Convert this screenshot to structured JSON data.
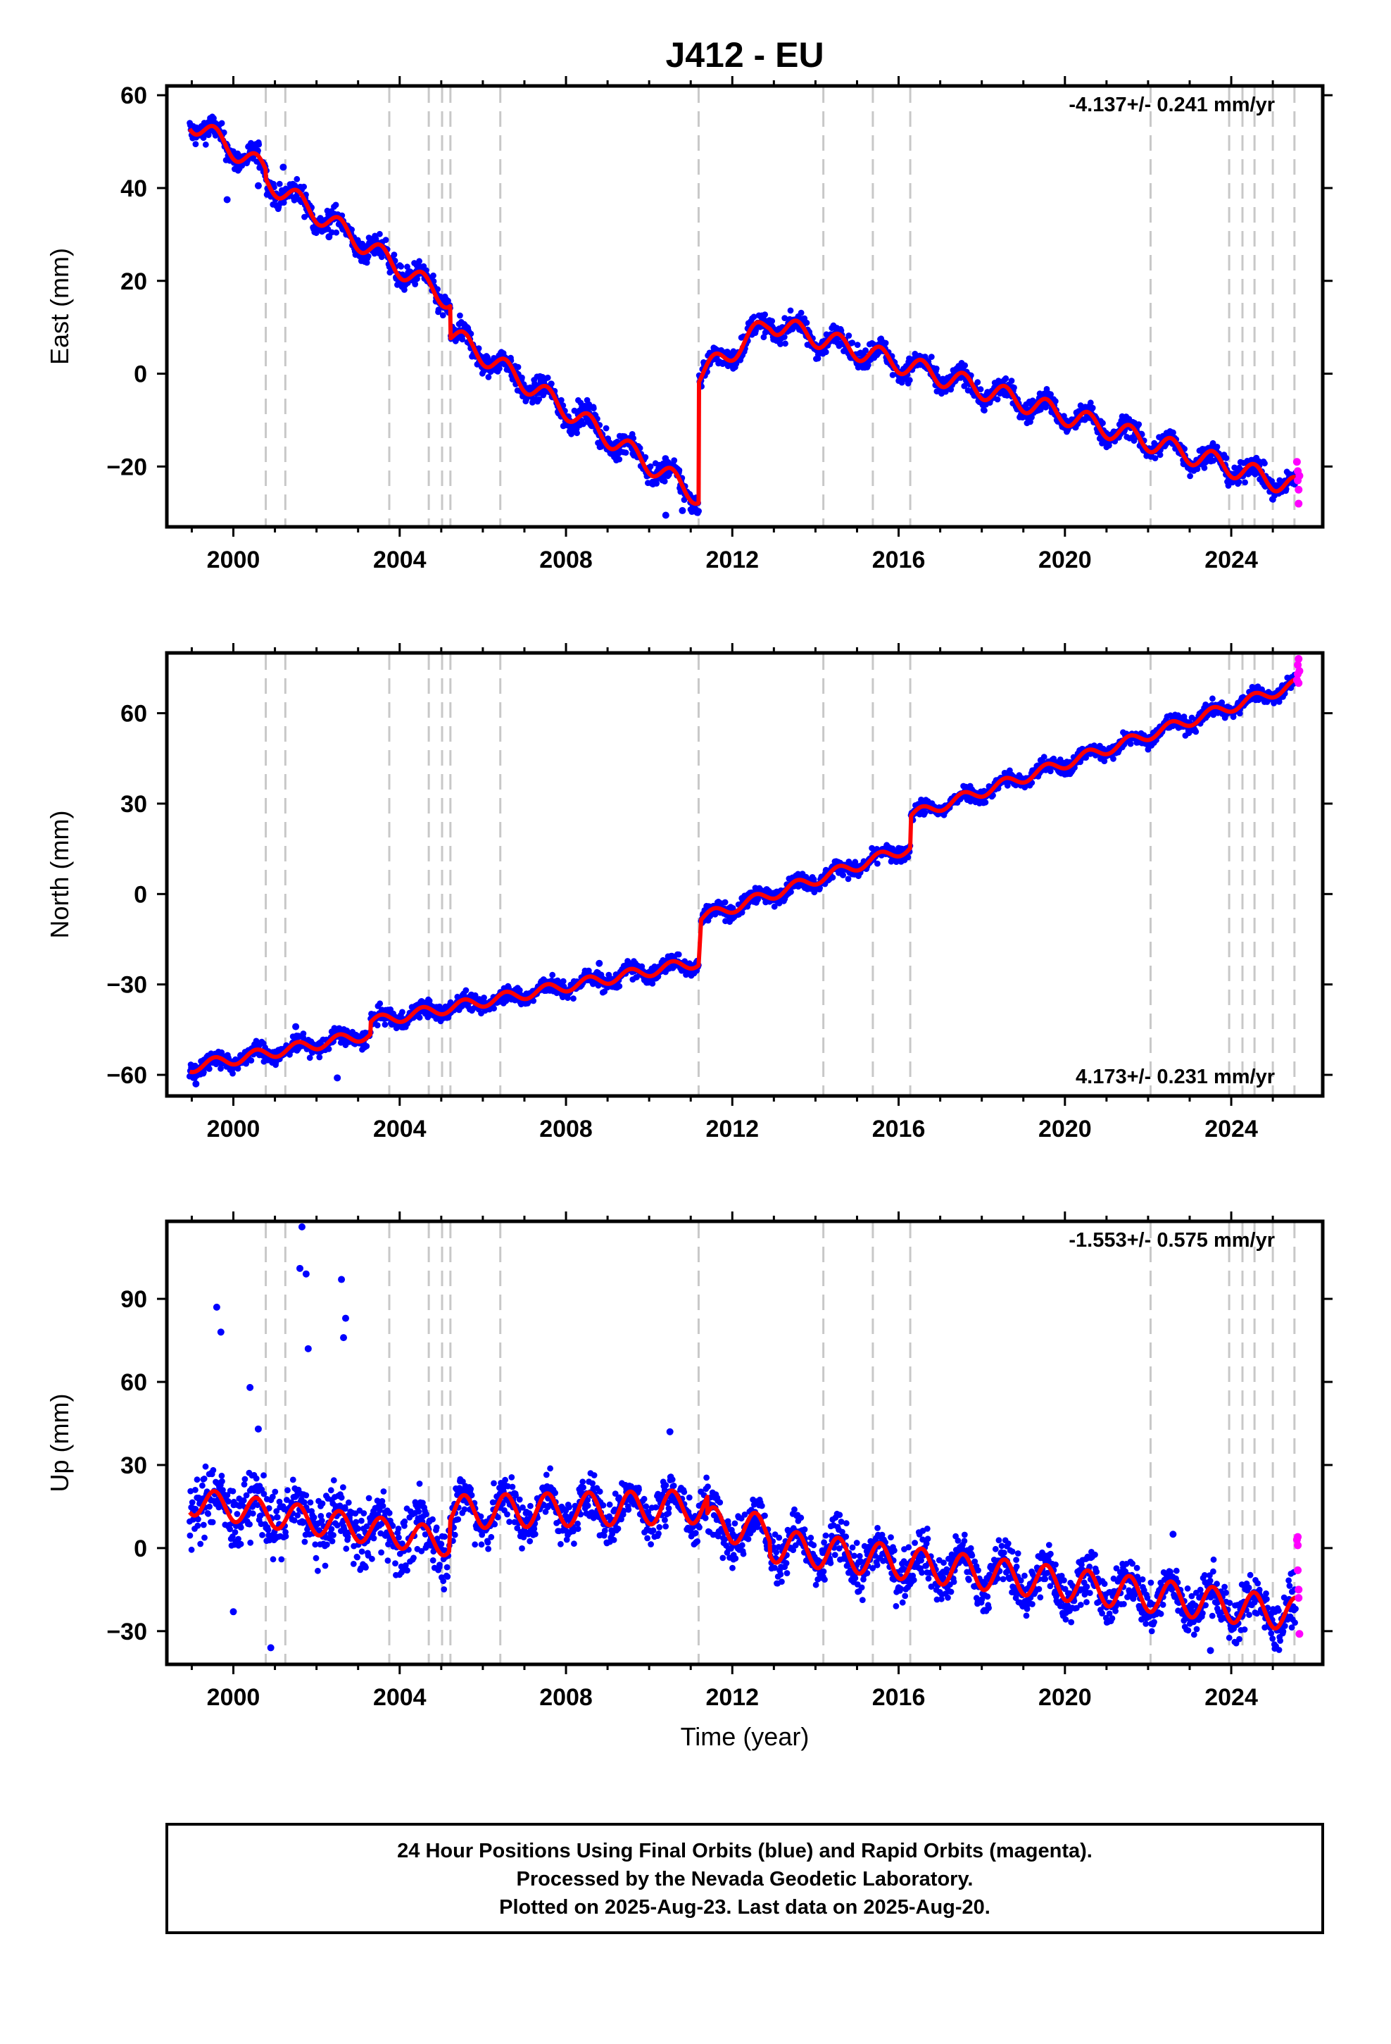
{
  "title": "J412 - EU",
  "footer": {
    "line1": "24 Hour Positions Using Final Orbits (blue) and Rapid Orbits (magenta).",
    "line2": "Processed by the Nevada Geodetic Laboratory.",
    "line3": "Plotted on 2025-Aug-23. Last data on 2025-Aug-20."
  },
  "colors": {
    "final": "#0000ff",
    "rapid": "#ff00ff",
    "model": "#ff0000",
    "events": "#c8c8c8"
  },
  "event_years": [
    2000.78,
    2001.25,
    2003.75,
    2004.7,
    2005.02,
    2005.22,
    2006.42,
    2011.19,
    2014.19,
    2015.38,
    2016.28,
    2022.06,
    2023.95,
    2024.27,
    2024.56,
    2025.0,
    2025.52
  ],
  "chart_data": [
    {
      "type": "scatter",
      "component": "east",
      "ylabel": "East (mm)",
      "xlabel": "",
      "rate_text": "-4.137+/- 0.241 mm/yr",
      "rate_position": "top-right",
      "xlim": [
        1998.4,
        2026.2
      ],
      "ylim": [
        -33,
        62
      ],
      "x_ticks": [
        "2000",
        "2004",
        "2008",
        "2012",
        "2016",
        "2020",
        "2024"
      ],
      "x_tick_values": [
        2000,
        2004,
        2008,
        2012,
        2016,
        2020,
        2024
      ],
      "y_ticks": [
        "60",
        "40",
        "20",
        "0",
        "−20"
      ],
      "y_tick_values": [
        60,
        40,
        20,
        0,
        -20
      ],
      "series": [
        {
          "kind": "final",
          "segments": [
            {
              "x0": 1998.95,
              "x1": 2011.2,
              "y0": 54.5,
              "y1": -26.5,
              "amp": 2.2,
              "noise": 1.8,
              "steps": [
                [
                  2000.78,
                  -2.0
                ],
                [
                  2005.22,
                  -7.0
                ]
              ]
            },
            {
              "x0": 2011.2,
              "x1": 2025.55,
              "y0": -0.5,
              "y1": -24.5,
              "amp": 2.2,
              "noise": 1.6,
              "steps": [],
              "bend": [
                2012.9,
                11.0
              ]
            }
          ],
          "outliers": [
            [
              1999.85,
              37.5
            ],
            [
              2000.6,
              40.5
            ],
            [
              2001.2,
              44.5
            ],
            [
              2002.3,
              29.5
            ],
            [
              2010.4,
              -30.5
            ],
            [
              2010.8,
              -29.5
            ]
          ]
        },
        {
          "kind": "rapid",
          "points": [
            [
              2025.58,
              -19
            ],
            [
              2025.6,
              -21
            ],
            [
              2025.6,
              -23
            ],
            [
              2025.62,
              -25
            ],
            [
              2025.62,
              -28
            ],
            [
              2025.64,
              -22
            ]
          ]
        }
      ]
    },
    {
      "type": "scatter",
      "component": "north",
      "ylabel": "North (mm)",
      "xlabel": "",
      "rate_text": "4.173+/- 0.231 mm/yr",
      "rate_position": "bottom-right",
      "xlim": [
        1998.4,
        2026.2
      ],
      "ylim": [
        -67,
        80
      ],
      "x_ticks": [
        "2000",
        "2004",
        "2008",
        "2012",
        "2016",
        "2020",
        "2024"
      ],
      "x_tick_values": [
        2000,
        2004,
        2008,
        2012,
        2016,
        2020,
        2024
      ],
      "y_ticks": [
        "60",
        "30",
        "0",
        "−30",
        "−60"
      ],
      "y_tick_values": [
        60,
        30,
        0,
        -30,
        -60
      ],
      "series": [
        {
          "kind": "final",
          "segments": [
            {
              "x0": 1998.95,
              "x1": 2011.2,
              "y0": -57.5,
              "y1": -22.5,
              "amp": 1.8,
              "noise": 2.0,
              "steps": [
                [
                  2003.3,
                  4.0
                ]
              ]
            },
            {
              "x0": 2011.25,
              "x1": 2016.28,
              "y0": -8.0,
              "y1": 15.5,
              "amp": 1.8,
              "noise": 1.8,
              "steps": []
            },
            {
              "x0": 2016.3,
              "x1": 2025.55,
              "y0": 26.0,
              "y1": 69.5,
              "amp": 1.8,
              "noise": 1.8,
              "steps": []
            }
          ],
          "outliers": [
            [
              1999.1,
              -63
            ],
            [
              2002.5,
              -61
            ],
            [
              2001.5,
              -44
            ],
            [
              2008.8,
              -23
            ]
          ]
        },
        {
          "kind": "rapid",
          "points": [
            [
              2025.58,
              71
            ],
            [
              2025.6,
              73
            ],
            [
              2025.6,
              76
            ],
            [
              2025.62,
              78
            ],
            [
              2025.64,
              74
            ],
            [
              2025.62,
              70
            ]
          ]
        }
      ]
    },
    {
      "type": "scatter",
      "component": "up",
      "ylabel": "Up (mm)",
      "xlabel": "Time (year)",
      "rate_text": "-1.553+/- 0.575 mm/yr",
      "rate_position": "top-right",
      "xlim": [
        1998.4,
        2026.2
      ],
      "ylim": [
        -42,
        118
      ],
      "x_ticks": [
        "2000",
        "2004",
        "2008",
        "2012",
        "2016",
        "2020",
        "2024"
      ],
      "x_tick_values": [
        2000,
        2004,
        2008,
        2012,
        2016,
        2020,
        2024
      ],
      "y_ticks": [
        "90",
        "60",
        "30",
        "0",
        "−30"
      ],
      "y_tick_values": [
        90,
        60,
        30,
        0,
        -30
      ],
      "series": [
        {
          "kind": "final",
          "segments": [
            {
              "x0": 1998.95,
              "x1": 2005.2,
              "y0": 17.0,
              "y1": 2.0,
              "amp": 5.0,
              "noise": 8.0,
              "steps": []
            },
            {
              "x0": 2005.22,
              "x1": 2011.4,
              "y0": 13.0,
              "y1": 15.0,
              "amp": 6.0,
              "noise": 6.0,
              "steps": []
            },
            {
              "x0": 2011.4,
              "x1": 2025.55,
              "y0": 9.0,
              "y1": -24.0,
              "amp": 6.0,
              "noise": 6.0,
              "steps": [
                [
                  2012.9,
                  -5.0
                ]
              ]
            }
          ],
          "outliers": [
            [
              1999.6,
              87
            ],
            [
              1999.7,
              78
            ],
            [
              2000.4,
              58
            ],
            [
              2001.6,
              101
            ],
            [
              2001.75,
              99
            ],
            [
              2001.65,
              116
            ],
            [
              2001.8,
              72
            ],
            [
              2002.6,
              97
            ],
            [
              2002.7,
              83
            ],
            [
              2002.65,
              76
            ],
            [
              2000.9,
              -36
            ],
            [
              2000.0,
              -23
            ],
            [
              2000.6,
              43
            ],
            [
              2010.5,
              42
            ],
            [
              2023.5,
              -37
            ],
            [
              2022.6,
              5
            ]
          ]
        },
        {
          "kind": "rapid",
          "points": [
            [
              2025.58,
              3
            ],
            [
              2025.6,
              4
            ],
            [
              2025.6,
              -8
            ],
            [
              2025.62,
              -15
            ],
            [
              2025.62,
              -18
            ],
            [
              2025.64,
              -31
            ],
            [
              2025.6,
              1
            ]
          ]
        }
      ]
    }
  ]
}
